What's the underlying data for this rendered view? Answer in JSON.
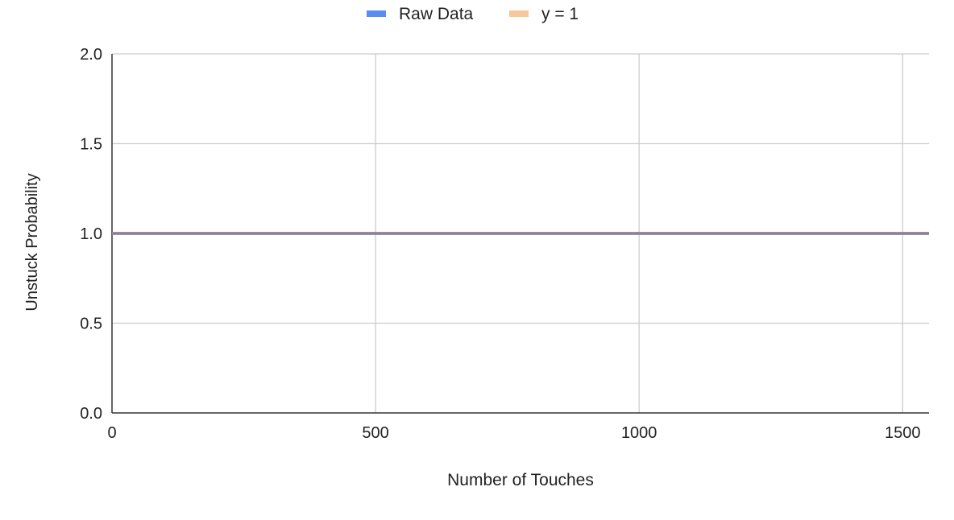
{
  "chart_data": {
    "type": "line",
    "title": "",
    "xlabel": "Number of Touches",
    "ylabel": "Unstuck Probability",
    "xlim": [
      0,
      1550
    ],
    "ylim": [
      0,
      2
    ],
    "x_ticks": [
      0,
      500,
      1000,
      1500
    ],
    "y_ticks": [
      0,
      0.5,
      1,
      1.5,
      2
    ],
    "x_tick_labels": [
      "0",
      "500",
      "1000",
      "1500"
    ],
    "y_tick_labels": [
      "0.0",
      "0.5",
      "1.0",
      "1.5",
      "2.0"
    ],
    "grid": true,
    "legend_position": "top-center",
    "series": [
      {
        "name": "Raw Data",
        "color": "#5b8def",
        "x": [
          0,
          1550
        ],
        "y": [
          1,
          1
        ]
      },
      {
        "name": "y = 1",
        "color": "#f6c79b",
        "x": [
          0,
          1550
        ],
        "y": [
          1,
          1
        ]
      }
    ],
    "overlap_color": "#8c8299"
  }
}
